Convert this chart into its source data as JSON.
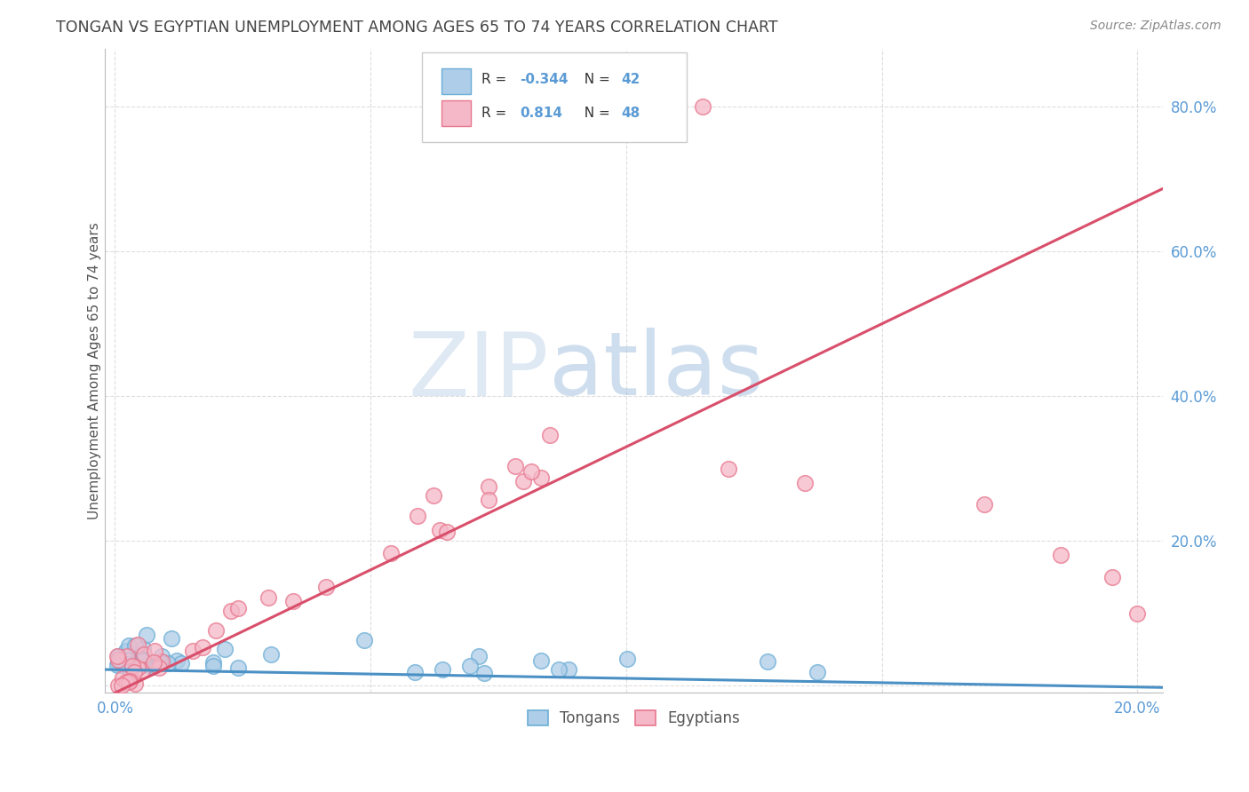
{
  "title": "TONGAN VS EGYPTIAN UNEMPLOYMENT AMONG AGES 65 TO 74 YEARS CORRELATION CHART",
  "source": "Source: ZipAtlas.com",
  "ylabel": "Unemployment Among Ages 65 to 74 years",
  "xlim": [
    -0.002,
    0.205
  ],
  "ylim": [
    -0.01,
    0.88
  ],
  "xtick_vals": [
    0.0,
    0.05,
    0.1,
    0.15,
    0.2
  ],
  "ytick_vals": [
    0.0,
    0.2,
    0.4,
    0.6,
    0.8
  ],
  "x_edge_labels": {
    "0.0": "0.0%",
    "0.20": "20.0%"
  },
  "ytick_labels": [
    "",
    "20.0%",
    "40.0%",
    "60.0%",
    "80.0%"
  ],
  "tongan_R": -0.344,
  "tongan_N": 42,
  "egyptian_R": 0.814,
  "egyptian_N": 48,
  "tongan_color": "#aecde8",
  "tongan_edge_color": "#6baed6",
  "tongan_line_color": "#4a90c4",
  "egyptian_color": "#f4b8c8",
  "egyptian_edge_color": "#e8778e",
  "egyptian_line_color": "#d94f6b",
  "watermark_zip_color": "#ccdff0",
  "watermark_atlas_color": "#b8cfe8",
  "background_color": "#ffffff",
  "grid_color": "#c8c8c8",
  "title_color": "#444444",
  "axis_label_color": "#555555",
  "tick_label_color": "#5b9bd5",
  "legend_text_color": "#333333",
  "legend_R_color": "#5b9bd5",
  "source_color": "#888888"
}
